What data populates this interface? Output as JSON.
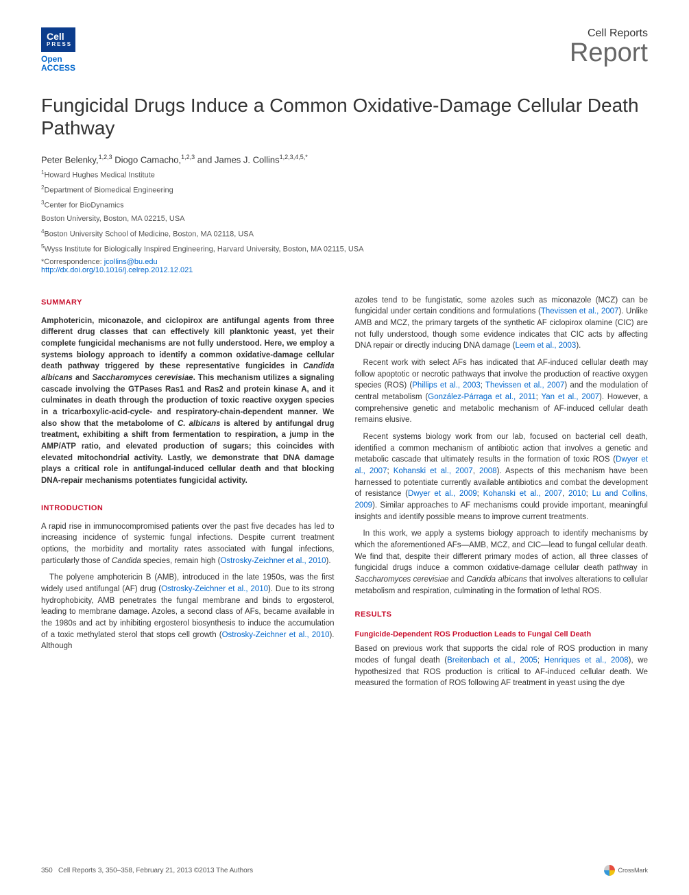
{
  "header": {
    "logo_cell": "Cell",
    "logo_press": "PRESS",
    "open_access_line1": "Open",
    "open_access_line2": "ACCESS",
    "journal": "Cell Reports",
    "type": "Report"
  },
  "title": "Fungicidal Drugs Induce a Common Oxidative-Damage Cellular Death Pathway",
  "authors_html": "Peter Belenky,<sup>1,2,3</sup> Diogo Camacho,<sup>1,2,3</sup> and James J. Collins<sup>1,2,3,4,5,*</sup>",
  "affiliations": [
    "<sup>1</sup>Howard Hughes Medical Institute",
    "<sup>2</sup>Department of Biomedical Engineering",
    "<sup>3</sup>Center for BioDynamics",
    "Boston University, Boston, MA 02215, USA",
    "<sup>4</sup>Boston University School of Medicine, Boston, MA 02118, USA",
    "<sup>5</sup>Wyss Institute for Biologically Inspired Engineering, Harvard University, Boston, MA 02115, USA"
  ],
  "correspondence_label": "*Correspondence: ",
  "correspondence_email": "jcollins@bu.edu",
  "doi": "http://dx.doi.org/10.1016/j.celrep.2012.12.021",
  "sections": {
    "summary_heading": "SUMMARY",
    "summary_text": "Amphotericin, miconazole, and ciclopirox are antifungal agents from three different drug classes that can effectively kill planktonic yeast, yet their complete fungicidal mechanisms are not fully understood. Here, we employ a systems biology approach to identify a common oxidative-damage cellular death pathway triggered by these representative fungicides in <span class=\"italic\">Candida albicans</span> and <span class=\"italic\">Saccharomyces cerevisiae</span>. This mechanism utilizes a signaling cascade involving the GTPases Ras1 and Ras2 and protein kinase A, and it culminates in death through the production of toxic reactive oxygen species in a tricarboxylic-acid-cycle- and respiratory-chain-dependent manner. We also show that the metabolome of <span class=\"italic\">C. albicans</span> is altered by antifungal drug treatment, exhibiting a shift from fermentation to respiration, a jump in the AMP/ATP ratio, and elevated production of sugars; this coincides with elevated mitochondrial activity. Lastly, we demonstrate that DNA damage plays a critical role in antifungal-induced cellular death and that blocking DNA-repair mechanisms potentiates fungicidal activity.",
    "introduction_heading": "INTRODUCTION",
    "intro_p1": "A rapid rise in immunocompromised patients over the past five decades has led to increasing incidence of systemic fungal infections. Despite current treatment options, the morbidity and mortality rates associated with fungal infections, particularly those of <span class=\"italic\">Candida</span> species, remain high (<span class=\"ref\">Ostrosky-Zeichner et al., 2010</span>).",
    "intro_p2": "The polyene amphotericin B (AMB), introduced in the late 1950s, was the first widely used antifungal (AF) drug (<span class=\"ref\">Ostrosky-Zeichner et al., 2010</span>). Due to its strong hydrophobicity, AMB penetrates the fungal membrane and binds to ergosterol, leading to membrane damage. Azoles, a second class of AFs, became available in the 1980s and act by inhibiting ergosterol biosynthesis to induce the accumulation of a toxic methylated sterol that stops cell growth (<span class=\"ref\">Ostrosky-Zeichner et al., 2010</span>). Although",
    "col2_p1": "azoles tend to be fungistatic, some azoles such as miconazole (MCZ) can be fungicidal under certain conditions and formulations (<span class=\"ref\">Thevissen et al., 2007</span>). Unlike AMB and MCZ, the primary targets of the synthetic AF ciclopirox olamine (CIC) are not fully understood, though some evidence indicates that CIC acts by affecting DNA repair or directly inducing DNA damage (<span class=\"ref\">Leem et al., 2003</span>).",
    "col2_p2": "Recent work with select AFs has indicated that AF-induced cellular death may follow apoptotic or necrotic pathways that involve the production of reactive oxygen species (ROS) (<span class=\"ref\">Phillips et al., 2003</span>; <span class=\"ref\">Thevissen et al., 2007</span>) and the modulation of central metabolism (<span class=\"ref\">González-Párraga et al., 2011</span>; <span class=\"ref\">Yan et al., 2007</span>). However, a comprehensive genetic and metabolic mechanism of AF-induced cellular death remains elusive.",
    "col2_p3": "Recent systems biology work from our lab, focused on bacterial cell death, identified a common mechanism of antibiotic action that involves a genetic and metabolic cascade that ultimately results in the formation of toxic ROS (<span class=\"ref\">Dwyer et al., 2007</span>; <span class=\"ref\">Kohanski et al., 2007</span>, <span class=\"ref\">2008</span>). Aspects of this mechanism have been harnessed to potentiate currently available antibiotics and combat the development of resistance (<span class=\"ref\">Dwyer et al., 2009</span>; <span class=\"ref\">Kohanski et al., 2007</span>, <span class=\"ref\">2010</span>; <span class=\"ref\">Lu and Collins, 2009</span>). Similar approaches to AF mechanisms could provide important, meaningful insights and identify possible means to improve current treatments.",
    "col2_p4": "In this work, we apply a systems biology approach to identify mechanisms by which the aforementioned AFs—AMB, MCZ, and CIC—lead to fungal cellular death. We find that, despite their different primary modes of action, all three classes of fungicidal drugs induce a common oxidative-damage cellular death pathway in <span class=\"italic\">Saccharomyces cerevisiae</span> and <span class=\"italic\">Candida albicans</span> that involves alterations to cellular metabolism and respiration, culminating in the formation of lethal ROS.",
    "results_heading": "RESULTS",
    "results_sub": "Fungicide-Dependent ROS Production Leads to Fungal Cell Death",
    "results_p1": "Based on previous work that supports the cidal role of ROS production in many modes of fungal death (<span class=\"ref\">Breitenbach et al., 2005</span>; <span class=\"ref\">Henriques et al., 2008</span>), we hypothesized that ROS production is critical to AF-induced cellular death. We measured the formation of ROS following AF treatment in yeast using the dye"
  },
  "footer": {
    "page": "350",
    "citation": "Cell Reports 3, 350–358, February 21, 2013 ©2013 The Authors",
    "crossmark": "CrossMark"
  },
  "colors": {
    "brand_blue": "#0b3c8c",
    "link_blue": "#0066cc",
    "heading_red": "#c8102e",
    "grey_text": "#666666"
  }
}
